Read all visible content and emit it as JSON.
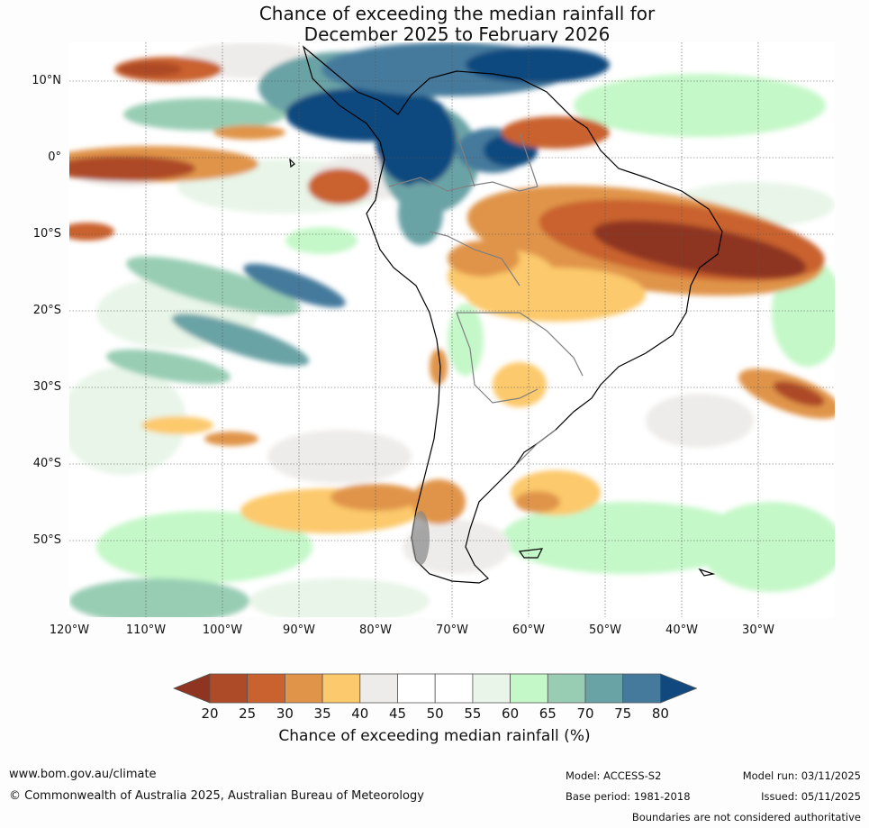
{
  "title": {
    "line1": "Chance of exceeding the median rainfall for",
    "line2": "December 2025 to February 2026"
  },
  "lat_labels": [
    "10°N",
    "0°",
    "10°S",
    "20°S",
    "30°S",
    "40°S",
    "50°S"
  ],
  "lon_labels": [
    "120°W",
    "110°W",
    "100°W",
    "90°W",
    "80°W",
    "70°W",
    "60°W",
    "50°W",
    "40°W",
    "30°W"
  ],
  "map_extent": {
    "lon_min": -120,
    "lon_max": -20,
    "lat_min": -60,
    "lat_max": 15
  },
  "colorbar": {
    "ticks": [
      "20",
      "25",
      "30",
      "35",
      "40",
      "45",
      "50",
      "55",
      "60",
      "65",
      "70",
      "75",
      "80"
    ],
    "colors": [
      "#8e3420",
      "#ad4a27",
      "#c9622f",
      "#e0944a",
      "#fcc96c",
      "#eeecea",
      "#ffffff",
      "#ffffff",
      "#e8f5e8",
      "#c4f8c8",
      "#98cdb4",
      "#6aa3a6",
      "#457a9c",
      "#11497f"
    ],
    "label": "Chance of exceeding median rainfall (%)"
  },
  "footer": {
    "url": "www.bom.gov.au/climate",
    "copyright": "© Commonwealth of Australia 2025, Australian Bureau of Meteorology",
    "model": "Model: ACCESS-S2",
    "base_period": "Base period: 1981-2018",
    "model_run": "Model run: 03/11/2025",
    "issued": "Issued: 05/11/2025",
    "disclaimer": "Boundaries are not considered authoritative"
  }
}
